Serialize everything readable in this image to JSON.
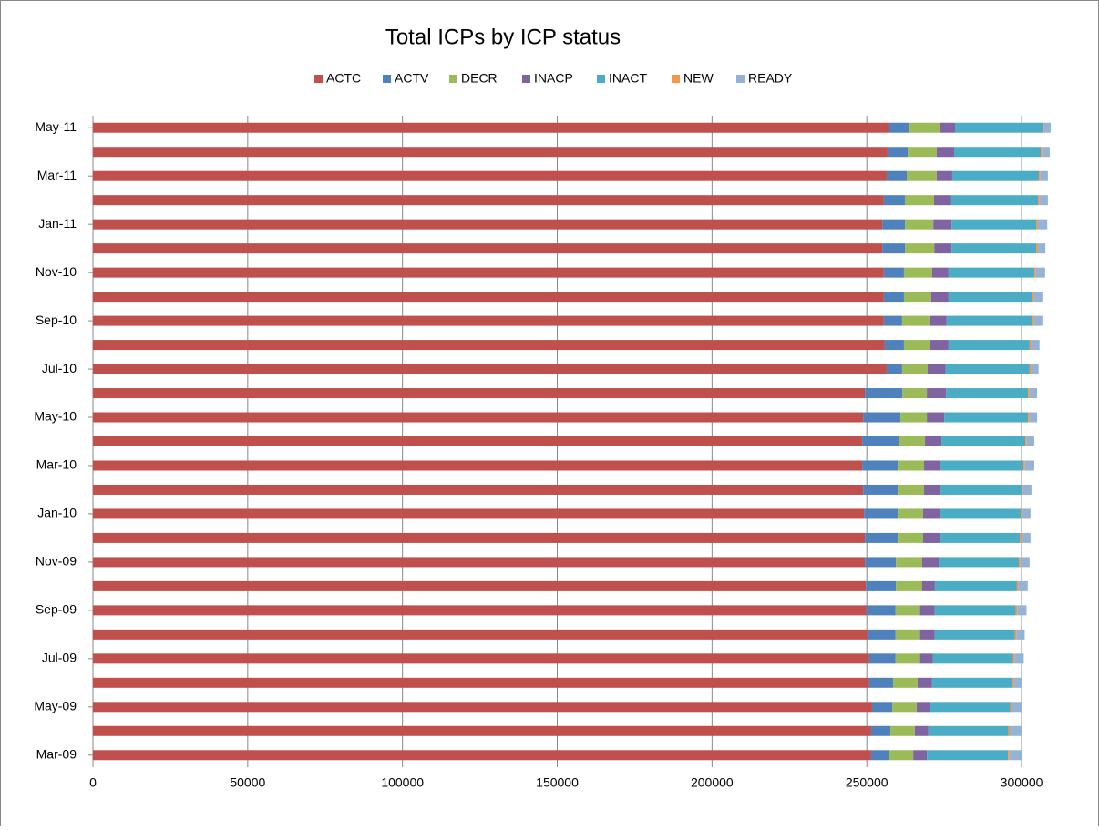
{
  "chart_data": {
    "type": "stacked-bar-horizontal",
    "title": "Total ICPs by ICP status",
    "categories": [
      "Mar-09",
      null,
      "May-09",
      null,
      "Jul-09",
      null,
      "Sep-09",
      null,
      "Nov-09",
      null,
      "Jan-10",
      null,
      "Mar-10",
      null,
      "May-10",
      null,
      "Jul-10",
      null,
      "Sep-10",
      null,
      "Nov-10",
      null,
      "Jan-11",
      null,
      "Mar-11",
      null,
      "May-11"
    ],
    "series": [
      {
        "name": "ACTC",
        "color": "#c0504d",
        "values": [
          251400,
          251400,
          251700,
          250800,
          250800,
          250200,
          249900,
          249700,
          249400,
          249400,
          249100,
          248800,
          248500,
          248500,
          248800,
          249400,
          256400,
          255800,
          255500,
          255500,
          255500,
          255000,
          255000,
          255500,
          256400,
          256700,
          257300
        ]
      },
      {
        "name": "ACTV",
        "color": "#4f81bd",
        "values": [
          5900,
          6200,
          6500,
          7700,
          8500,
          9100,
          9400,
          9700,
          10000,
          10600,
          10900,
          11200,
          11500,
          11800,
          12100,
          12100,
          5000,
          6200,
          5900,
          6500,
          6500,
          7400,
          7400,
          6800,
          6500,
          6500,
          6500
        ]
      },
      {
        "name": "DECR",
        "color": "#9bbb59",
        "values": [
          7700,
          7900,
          7900,
          7900,
          7900,
          7900,
          7900,
          8500,
          8500,
          8200,
          8200,
          8500,
          8500,
          8500,
          8500,
          7900,
          8200,
          8200,
          8800,
          8800,
          9100,
          9400,
          9100,
          9400,
          9700,
          9400,
          9700
        ]
      },
      {
        "name": "INACP",
        "color": "#8064a2",
        "values": [
          4400,
          4400,
          4400,
          4700,
          4100,
          4700,
          4700,
          4100,
          5300,
          5600,
          5600,
          5300,
          5300,
          5300,
          5600,
          6200,
          5900,
          6200,
          5600,
          5600,
          5300,
          5600,
          5900,
          5600,
          5000,
          5600,
          5000
        ]
      },
      {
        "name": "INACT",
        "color": "#4bacc6",
        "values": [
          26200,
          25900,
          25900,
          25900,
          25900,
          25900,
          26200,
          26500,
          25900,
          25600,
          25900,
          26200,
          26800,
          27100,
          27100,
          26500,
          27100,
          26200,
          27700,
          27100,
          27700,
          27400,
          27400,
          28000,
          28000,
          28000,
          28300
        ]
      },
      {
        "name": "NEW",
        "color": "#f79646",
        "values": [
          500,
          500,
          500,
          500,
          500,
          500,
          500,
          500,
          500,
          500,
          500,
          500,
          500,
          500,
          500,
          500,
          500,
          500,
          500,
          500,
          500,
          500,
          500,
          500,
          500,
          500,
          500
        ]
      },
      {
        "name": "READY",
        "color": "#95b3d7",
        "values": [
          4200,
          3900,
          3300,
          2700,
          3000,
          2700,
          3000,
          3000,
          3000,
          3000,
          2700,
          2700,
          3000,
          2400,
          2400,
          2400,
          2400,
          2700,
          2700,
          2700,
          3000,
          2400,
          3000,
          2700,
          2400,
          2400,
          2100
        ]
      }
    ],
    "xlim": [
      0,
      310000
    ],
    "xticks": [
      0,
      50000,
      100000,
      150000,
      200000,
      250000,
      300000
    ],
    "grid": true
  }
}
